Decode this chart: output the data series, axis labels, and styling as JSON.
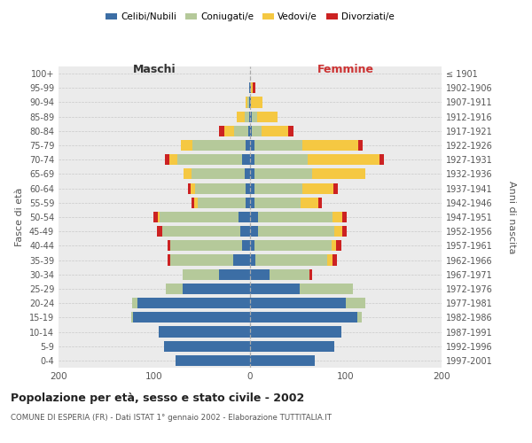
{
  "age_groups": [
    "0-4",
    "5-9",
    "10-14",
    "15-19",
    "20-24",
    "25-29",
    "30-34",
    "35-39",
    "40-44",
    "45-49",
    "50-54",
    "55-59",
    "60-64",
    "65-69",
    "70-74",
    "75-79",
    "80-84",
    "85-89",
    "90-94",
    "95-99",
    "100+"
  ],
  "birth_years": [
    "1997-2001",
    "1992-1996",
    "1987-1991",
    "1982-1986",
    "1977-1981",
    "1972-1976",
    "1967-1971",
    "1962-1966",
    "1957-1961",
    "1952-1956",
    "1947-1951",
    "1942-1946",
    "1937-1941",
    "1932-1936",
    "1927-1931",
    "1922-1926",
    "1917-1921",
    "1912-1916",
    "1907-1911",
    "1902-1906",
    "≤ 1901"
  ],
  "colors": {
    "celibi": "#3c6ea5",
    "coniugati": "#b5c99a",
    "vedovi": "#f5c842",
    "divorziati": "#cc2222"
  },
  "males": {
    "celibi": [
      78,
      90,
      95,
      122,
      118,
      70,
      32,
      18,
      8,
      10,
      12,
      5,
      5,
      6,
      8,
      5,
      2,
      1,
      1,
      1,
      0
    ],
    "coniugati": [
      0,
      0,
      0,
      2,
      5,
      18,
      38,
      65,
      75,
      82,
      82,
      50,
      52,
      55,
      68,
      55,
      15,
      5,
      2,
      0,
      0
    ],
    "vedovi": [
      0,
      0,
      0,
      0,
      0,
      0,
      0,
      0,
      0,
      0,
      2,
      3,
      5,
      8,
      8,
      12,
      10,
      8,
      2,
      0,
      0
    ],
    "divorziati": [
      0,
      0,
      0,
      0,
      0,
      0,
      0,
      3,
      3,
      5,
      5,
      3,
      3,
      0,
      5,
      0,
      5,
      0,
      0,
      0,
      0
    ]
  },
  "females": {
    "celibi": [
      68,
      88,
      95,
      112,
      100,
      52,
      20,
      6,
      5,
      8,
      8,
      5,
      5,
      5,
      5,
      5,
      2,
      2,
      1,
      1,
      0
    ],
    "coniugati": [
      0,
      0,
      0,
      5,
      20,
      55,
      42,
      75,
      80,
      80,
      78,
      48,
      50,
      60,
      55,
      50,
      10,
      5,
      0,
      0,
      0
    ],
    "vedovi": [
      0,
      0,
      0,
      0,
      0,
      0,
      0,
      5,
      5,
      8,
      10,
      18,
      32,
      55,
      75,
      58,
      28,
      22,
      12,
      2,
      0
    ],
    "divorziati": [
      0,
      0,
      0,
      0,
      0,
      0,
      3,
      5,
      5,
      5,
      5,
      4,
      5,
      0,
      5,
      5,
      5,
      0,
      0,
      3,
      0
    ]
  },
  "xlim": 200,
  "title": "Popolazione per età, sesso e stato civile - 2002",
  "subtitle": "COMUNE DI ESPERIA (FR) - Dati ISTAT 1° gennaio 2002 - Elaborazione TUTTITALIA.IT",
  "ylabel_left": "Fasce di età",
  "ylabel_right": "Anni di nascita",
  "xlabel_left": "Maschi",
  "xlabel_right": "Femmine",
  "bg_color": "#ebebeb",
  "bar_height": 0.75
}
